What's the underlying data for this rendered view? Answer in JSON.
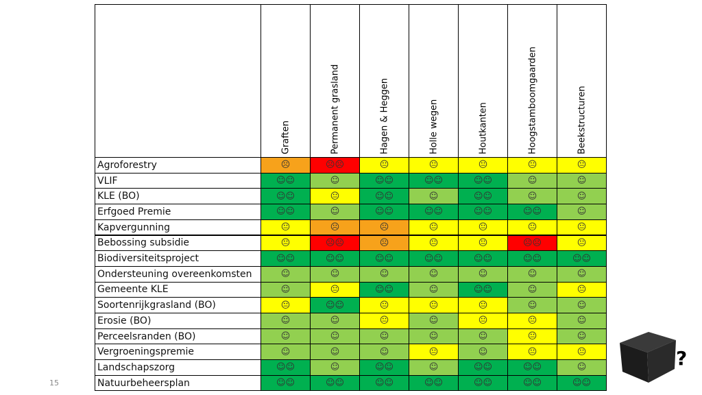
{
  "page_number": "15",
  "box_label": "?",
  "table": {
    "columns": [
      "Graften",
      "Permanent grasland",
      "Hagen & Heggen",
      "Holle wegen",
      "Houtkanten",
      "Hoogstamboomgaarden",
      "Beekstructuren"
    ],
    "rows": [
      {
        "label": "Agroforestry",
        "symbols": [
          "☹",
          "☹☹",
          "😐",
          "😐",
          "😐",
          "😐",
          "😐"
        ],
        "colors": [
          "#f7a21b",
          "#ff0000",
          "#ffff00",
          "#ffff00",
          "#ffff00",
          "#ffff00",
          "#ffff00"
        ]
      },
      {
        "label": "VLIF",
        "symbols": [
          "☺☺",
          "☺",
          "☺☺",
          "☺☺",
          "☺☺",
          "☺",
          "☺"
        ],
        "colors": [
          "#00b050",
          "#92d050",
          "#00b050",
          "#00b050",
          "#00b050",
          "#92d050",
          "#92d050"
        ]
      },
      {
        "label": "KLE (BO)",
        "symbols": [
          "☺☺",
          "😐",
          "☺☺",
          "☺",
          "☺☺",
          "☺",
          "☺"
        ],
        "colors": [
          "#00b050",
          "#ffff00",
          "#00b050",
          "#92d050",
          "#00b050",
          "#92d050",
          "#92d050"
        ]
      },
      {
        "label": "Erfgoed Premie",
        "symbols": [
          "☺☺",
          "☺",
          "☺☺",
          "☺☺",
          "☺☺",
          "☺☺",
          "☺"
        ],
        "colors": [
          "#00b050",
          "#92d050",
          "#00b050",
          "#00b050",
          "#00b050",
          "#00b050",
          "#92d050"
        ]
      },
      {
        "label": "Kapvergunning",
        "symbols": [
          "😐",
          "☹",
          "☹",
          "😐",
          "😐",
          "😐",
          "😐"
        ],
        "colors": [
          "#ffff00",
          "#f7a21b",
          "#f7a21b",
          "#ffff00",
          "#ffff00",
          "#ffff00",
          "#ffff00"
        ]
      },
      {
        "label": "Bebossing subsidie",
        "symbols": [
          "😐",
          "☹☹",
          "☹",
          "😐",
          "😐",
          "☹☹",
          "😐"
        ],
        "colors": [
          "#ffff00",
          "#ff0000",
          "#f7a21b",
          "#ffff00",
          "#ffff00",
          "#ff0000",
          "#ffff00"
        ]
      },
      {
        "label": "Biodiversiteitsproject",
        "symbols": [
          "☺☺",
          "☺☺",
          "☺☺",
          "☺☺",
          "☺☺",
          "☺☺",
          "☺☺"
        ],
        "colors": [
          "#00b050",
          "#00b050",
          "#00b050",
          "#00b050",
          "#00b050",
          "#00b050",
          "#00b050"
        ]
      },
      {
        "label": "Ondersteuning overeenkomsten",
        "symbols": [
          "☺",
          "☺",
          "☺",
          "☺",
          "☺",
          "☺",
          "☺"
        ],
        "colors": [
          "#92d050",
          "#92d050",
          "#92d050",
          "#92d050",
          "#92d050",
          "#92d050",
          "#92d050"
        ]
      },
      {
        "label": "Gemeente KLE",
        "symbols": [
          "☺",
          "😐",
          "☺☺",
          "☺",
          "☺☺",
          "☺",
          "😐"
        ],
        "colors": [
          "#92d050",
          "#ffff00",
          "#00b050",
          "#92d050",
          "#00b050",
          "#92d050",
          "#ffff00"
        ]
      },
      {
        "label": "Soortenrijkgrasland (BO)",
        "symbols": [
          "😐",
          "☺☺",
          "😐",
          "😐",
          "😐",
          "☺",
          "☺"
        ],
        "colors": [
          "#ffff00",
          "#00b050",
          "#ffff00",
          "#ffff00",
          "#ffff00",
          "#92d050",
          "#92d050"
        ]
      },
      {
        "label": "Erosie (BO)",
        "symbols": [
          "☺",
          "☺",
          "😐",
          "☺",
          "😐",
          "😐",
          "☺"
        ],
        "colors": [
          "#92d050",
          "#92d050",
          "#ffff00",
          "#92d050",
          "#ffff00",
          "#ffff00",
          "#92d050"
        ]
      },
      {
        "label": "Perceelsranden (BO)",
        "symbols": [
          "☺",
          "☺",
          "☺",
          "☺",
          "☺",
          "😐",
          "☺"
        ],
        "colors": [
          "#92d050",
          "#92d050",
          "#92d050",
          "#92d050",
          "#92d050",
          "#ffff00",
          "#92d050"
        ]
      },
      {
        "label": "Vergroeningspremie",
        "symbols": [
          "☺",
          "☺",
          "☺",
          "😐",
          "☺",
          "😐",
          "😐"
        ],
        "colors": [
          "#92d050",
          "#92d050",
          "#92d050",
          "#ffff00",
          "#92d050",
          "#ffff00",
          "#ffff00"
        ]
      },
      {
        "label": "Landschapszorg",
        "symbols": [
          "☺☺",
          "☺",
          "☺☺",
          "☺",
          "☺☺",
          "☺☺",
          "☺"
        ],
        "colors": [
          "#00b050",
          "#92d050",
          "#00b050",
          "#92d050",
          "#00b050",
          "#00b050",
          "#92d050"
        ]
      },
      {
        "label": "Natuurbeheersplan",
        "symbols": [
          "☺☺",
          "☺☺",
          "☺☺",
          "☺☺",
          "☺☺",
          "☺☺",
          "☺☺"
        ],
        "colors": [
          "#00b050",
          "#00b050",
          "#00b050",
          "#00b050",
          "#00b050",
          "#00b050",
          "#00b050"
        ]
      }
    ]
  }
}
